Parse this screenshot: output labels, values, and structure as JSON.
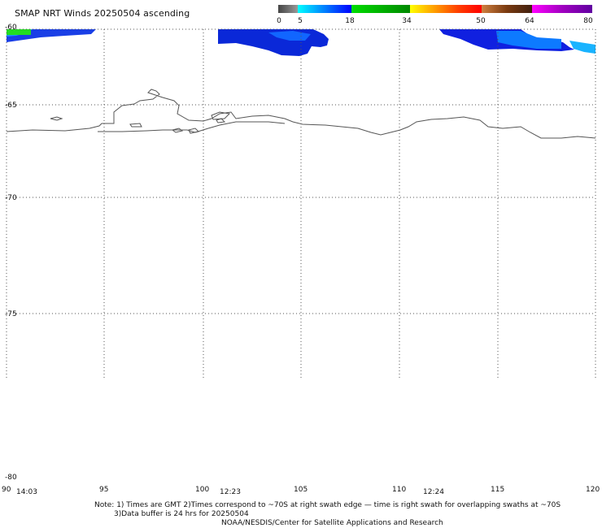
{
  "title": "SMAP NRT Winds 20250504 ascending",
  "colorbar": {
    "tick_labels": [
      "0",
      "5",
      "18",
      "34",
      "50",
      "64",
      "80"
    ],
    "tick_values": [
      0,
      5,
      18,
      34,
      50,
      64,
      80
    ],
    "segments": [
      {
        "from": 0,
        "to": 5,
        "color": "#707070"
      },
      {
        "from": 5,
        "to": 18,
        "color": "#0080ff"
      },
      {
        "from": 18,
        "to": 34,
        "color": "#00c000"
      },
      {
        "from": 34,
        "to": 50,
        "color": "#ff6000"
      },
      {
        "from": 50,
        "to": 64,
        "color": "#8b4513"
      },
      {
        "from": 64,
        "to": 80,
        "color": "#d000d0"
      }
    ]
  },
  "map": {
    "lon_ticks": [
      "90",
      "95",
      "100",
      "105",
      "110",
      "115",
      "120"
    ],
    "lat_ticks": [
      "-60",
      "-65",
      "-70",
      "-75",
      "-80"
    ],
    "times": [
      "14:03",
      "12:23",
      "12:24"
    ],
    "coastline_color": "#555555",
    "wind_colors": [
      "#00cc33",
      "#0055ff",
      "#00aaff",
      "#0000cc"
    ]
  },
  "notes": {
    "line1": "Note: 1) Times are GMT 2)Times correspond to ~70S at right swath edge — time is right swath for overlapping swaths at ~70S",
    "line2": "3)Data buffer is 24 hrs for 20250504",
    "line3": "NOAA/NESDIS/Center for Satellite Applications and Research"
  }
}
